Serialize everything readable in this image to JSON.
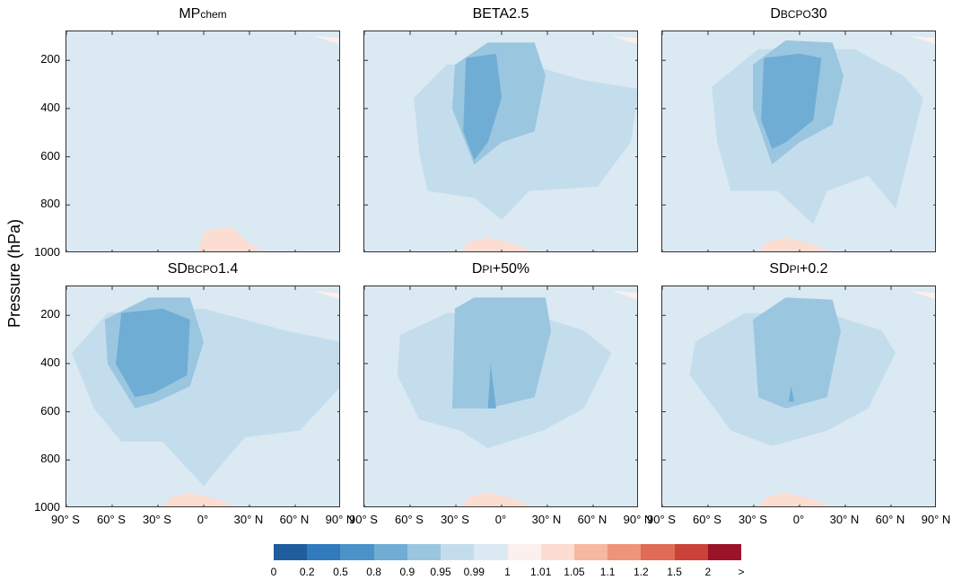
{
  "ylabel": "Pressure (hPa)",
  "panels": [
    {
      "title_main": "MP",
      "title_sub": "chem",
      "title_tail": ""
    },
    {
      "title_main": "BETA2.5",
      "title_sub": "",
      "title_tail": ""
    },
    {
      "title_main": "D",
      "title_sub": "BCPO",
      "title_tail": "30"
    },
    {
      "title_main": "SD",
      "title_sub": "BCPO",
      "title_tail": "1.4"
    },
    {
      "title_main": "D",
      "title_sub": "PI",
      "title_tail": "+50%"
    },
    {
      "title_main": "SD",
      "title_sub": "PI",
      "title_tail": "+0.2"
    }
  ],
  "yticks": [
    "200",
    "400",
    "600",
    "800",
    "1000"
  ],
  "xticks": [
    "90° S",
    "60° S",
    "30° S",
    "0°",
    "30° N",
    "60° N",
    "90° N"
  ],
  "colorbar": {
    "labels": [
      "0",
      "0.2",
      "0.5",
      "0.8",
      "0.9",
      "0.95",
      "0.99",
      "1",
      "1.01",
      "1.05",
      "1.1",
      "1.2",
      "1.5",
      "2",
      ">"
    ],
    "colors": [
      "#1f5d9c",
      "#2f7bbd",
      "#4a93c8",
      "#6fadd5",
      "#9bc6e0",
      "#c4dded",
      "#dbe9f2",
      "#fbf0ed",
      "#fbddd1",
      "#f6b89f",
      "#ee9479",
      "#e06c56",
      "#cb4238",
      "#9b1328"
    ]
  },
  "chart_data": {
    "type": "heatmap",
    "title": "",
    "xlabel": "",
    "ylabel": "Pressure (hPa)",
    "xlim": [
      -90,
      90
    ],
    "ylim": [
      1000,
      80
    ],
    "ytick_values": [
      200,
      400,
      600,
      800,
      1000
    ],
    "xtick_values": [
      -90,
      -60,
      -30,
      0,
      30,
      60,
      90
    ],
    "levels": [
      0,
      0.2,
      0.5,
      0.8,
      0.9,
      0.95,
      0.99,
      1,
      1.01,
      1.05,
      1.1,
      1.2,
      1.5,
      2
    ],
    "background_level": "0.99-1",
    "panels": [
      {
        "name": "MPchem",
        "max_ratio_range": "0.99-1"
      },
      {
        "name": "BETA2.5",
        "min_ratio_range": "0.8-0.9"
      },
      {
        "name": "DBCPO30",
        "min_ratio_range": "0.8-0.9"
      },
      {
        "name": "SDBCPO1.4",
        "min_ratio_range": "0.8-0.9"
      },
      {
        "name": "DPI+50%",
        "min_ratio_range": "0.8-0.9"
      },
      {
        "name": "SDPI+0.2",
        "min_ratio_range": "0.8-0.9"
      }
    ]
  }
}
